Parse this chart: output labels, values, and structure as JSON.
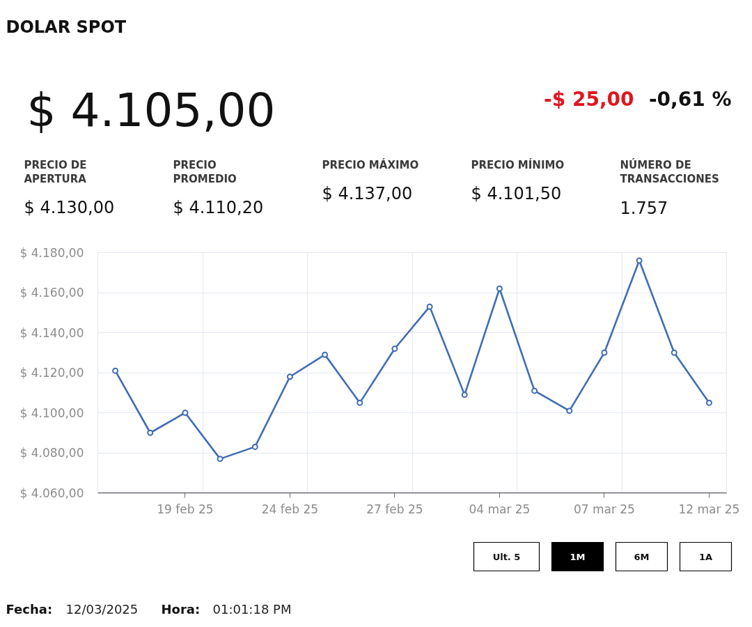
{
  "chart_data": [
    {
      "type": "other",
      "title": "DOLAR SPOT",
      "subtitle": "$ 4.105,00",
      "annotations": [
        "-$ 25,00",
        "-0,61 %",
        "PRECIO DE APERTURA",
        "$ 4.130,00",
        "PRECIO PROMEDIO",
        "$ 4.110,20",
        "PRECIO MÁXIMO",
        "$ 4.137,00",
        "PRECIO MÍNIMO",
        "$ 4.101,50",
        "NÚMERO DE TRANSACCIONES",
        "1.757"
      ]
    },
    {
      "type": "line",
      "categories": [
        null,
        null,
        "19 feb 25",
        null,
        null,
        "24 feb 25",
        null,
        null,
        "27 feb 25",
        null,
        null,
        "04 mar 25",
        null,
        null,
        "07 mar 25",
        null,
        null,
        "12 mar 25"
      ],
      "values": [
        4121,
        4090,
        4100,
        4077,
        4083,
        4118,
        4129,
        4105,
        4132,
        4153,
        4109,
        4162,
        4111,
        4101,
        4130,
        4176,
        4130,
        4105
      ],
      "color": "#3f6db5",
      "ylim": [
        4060,
        4180
      ],
      "yticks": [
        {
          "value": 4060,
          "label": "$ 4.060,00"
        },
        {
          "value": 4080,
          "label": "$ 4.080,00"
        },
        {
          "value": 4100,
          "label": "$ 4.100,00"
        },
        {
          "value": 4120,
          "label": "$ 4.120,00"
        },
        {
          "value": 4140,
          "label": "$ 4.140,00"
        },
        {
          "value": 4160,
          "label": "$ 4.160,00"
        },
        {
          "value": 4180,
          "label": "$ 4.180,00"
        }
      ],
      "grid": true,
      "marker": "circle",
      "line_style": "solid",
      "annotations": [
        "Ult. 5",
        "1M",
        "6M",
        "1A"
      ]
    },
    {
      "type": "other",
      "annotations": [
        "Fecha:",
        "12/03/2025",
        "Hora:",
        "01:01:18 PM"
      ]
    }
  ]
}
